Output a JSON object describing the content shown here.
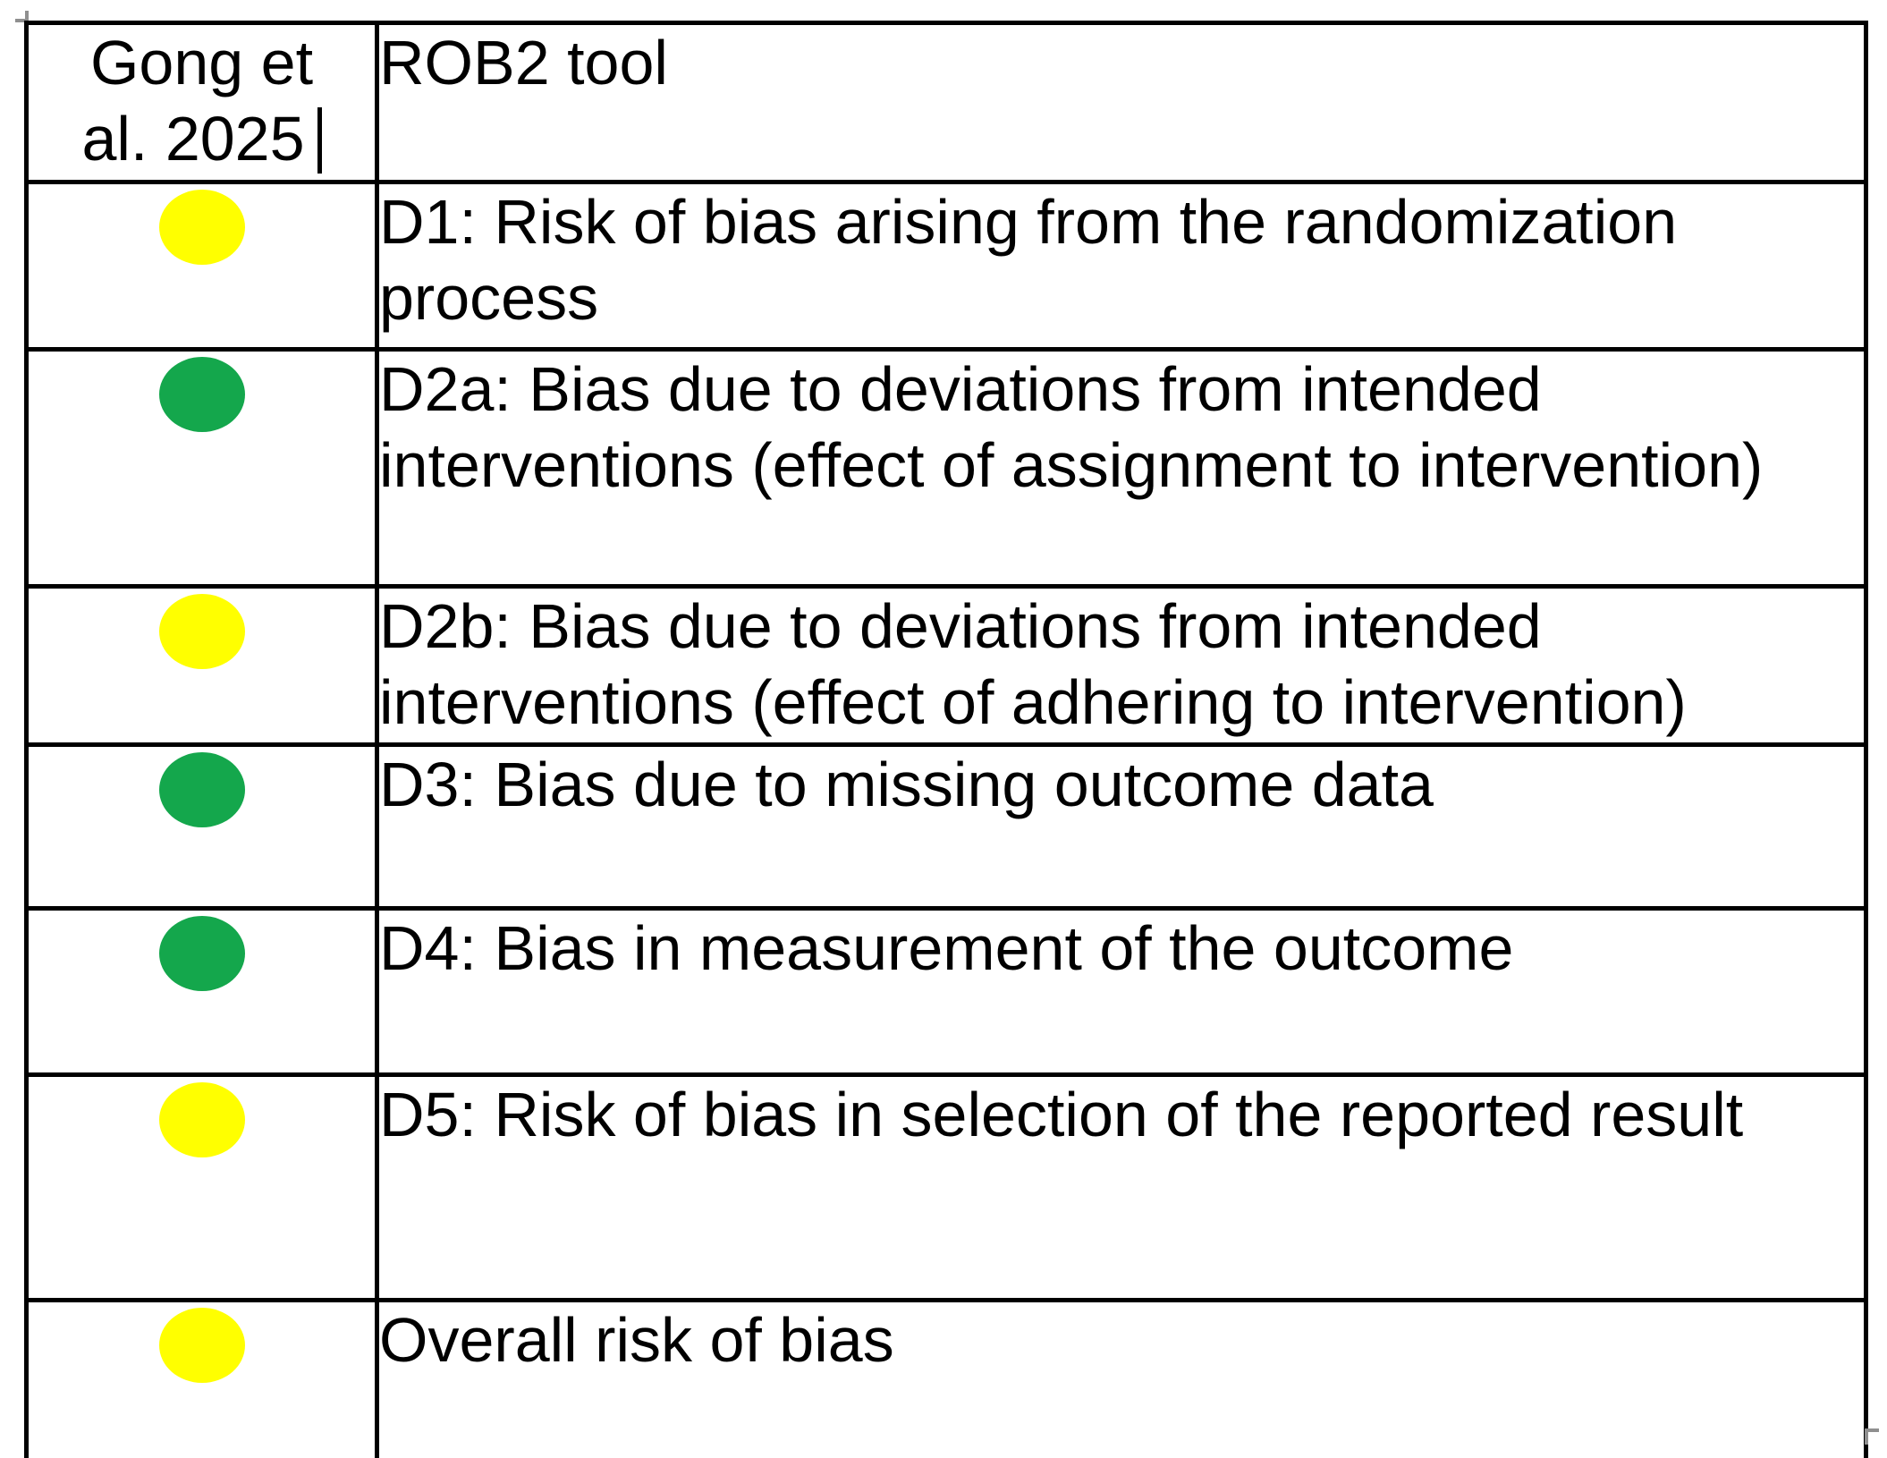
{
  "table": {
    "header": {
      "study": "Gong et\nal. 2025",
      "tool": "ROB2 tool"
    },
    "rows": [
      {
        "domain": "D1",
        "dot_color": "#FFFF00",
        "dot_color_name": "yellow",
        "label": "D1: Risk of bias arising from the randomization process"
      },
      {
        "domain": "D2a",
        "dot_color": "#14A74C",
        "dot_color_name": "green",
        "label": "D2a: Bias due to deviations from intended interventions (effect of assignment to intervention)"
      },
      {
        "domain": "D2b",
        "dot_color": "#FFFF00",
        "dot_color_name": "yellow",
        "label": "D2b: Bias due to deviations from intended interventions (effect of adhering to intervention)"
      },
      {
        "domain": "D3",
        "dot_color": "#14A74C",
        "dot_color_name": "green",
        "label": "D3: Bias due to missing outcome data"
      },
      {
        "domain": "D4",
        "dot_color": "#14A74C",
        "dot_color_name": "green",
        "label": "D4: Bias in measurement of the outcome"
      },
      {
        "domain": "D5",
        "dot_color": "#FFFF00",
        "dot_color_name": "yellow",
        "label": "D5: Risk of bias in selection of the reported result"
      },
      {
        "domain": "Overall",
        "dot_color": "#FFFF00",
        "dot_color_name": "yellow",
        "label": "Overall risk of bias"
      }
    ],
    "colors": {
      "yellow": "#FFFF00",
      "green": "#14A74C",
      "border": "#000000"
    }
  }
}
